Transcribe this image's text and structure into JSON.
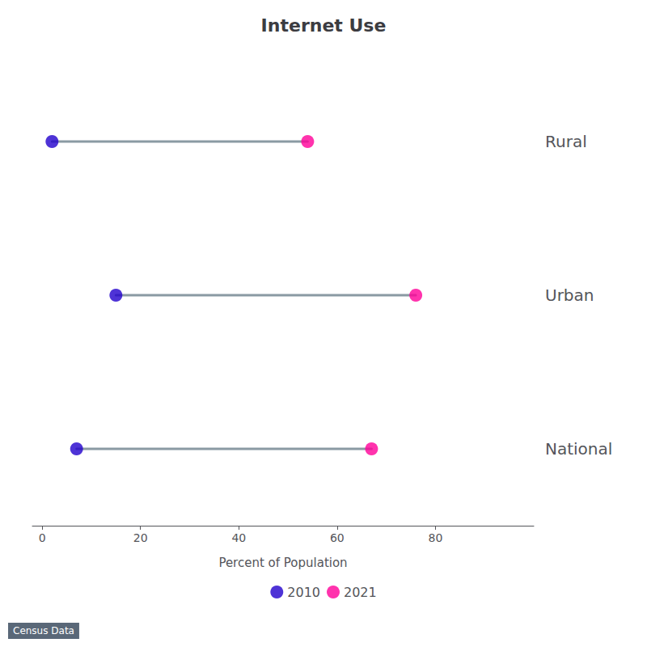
{
  "chart_data": {
    "type": "dumbbell",
    "title": "Internet Use",
    "xlabel": "Percent of Population",
    "categories": [
      "Rural",
      "Urban",
      "National"
    ],
    "series": [
      {
        "name": "2010",
        "color": "#2200CC",
        "values": [
          2,
          15,
          7
        ]
      },
      {
        "name": "2021",
        "color": "#FF0099",
        "values": [
          54,
          76,
          67
        ]
      }
    ],
    "xlim": [
      -2,
      100
    ],
    "xticks": [
      0,
      20,
      40,
      60,
      80
    ],
    "annotations": [
      "Census Data"
    ],
    "legend": "bottom",
    "grid": false
  }
}
